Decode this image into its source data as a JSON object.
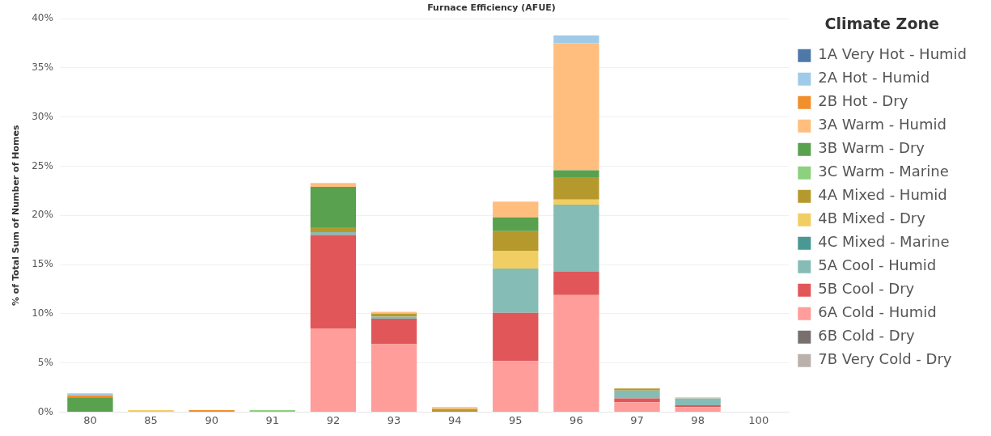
{
  "chart_data": {
    "type": "bar",
    "title": "Furnace Efficiency (AFUE)",
    "ylabel": "% of Total Sum of Number of Homes",
    "legend_title": "Climate Zone",
    "stacked": true,
    "grid": "y",
    "legend": "right",
    "categories": [
      "80",
      "85",
      "90",
      "91",
      "92",
      "93",
      "94",
      "95",
      "96",
      "97",
      "98",
      "100"
    ],
    "ylim": [
      0,
      40
    ],
    "yticks": [
      {
        "value": 0,
        "label": "0%"
      },
      {
        "value": 5,
        "label": "5%"
      },
      {
        "value": 10,
        "label": "10%"
      },
      {
        "value": 15,
        "label": "15%"
      },
      {
        "value": 20,
        "label": "20%"
      },
      {
        "value": 25,
        "label": "25%"
      },
      {
        "value": 30,
        "label": "30%"
      },
      {
        "value": 35,
        "label": "35%"
      },
      {
        "value": 40,
        "label": "40%"
      }
    ],
    "series": [
      {
        "name": "7B Very Cold - Dry",
        "color": "#bab0ac",
        "values": [
          null,
          null,
          null,
          null,
          null,
          null,
          null,
          null,
          null,
          null,
          null,
          null
        ]
      },
      {
        "name": "6B Cold - Dry",
        "color": "#79706e",
        "values": [
          null,
          null,
          null,
          null,
          null,
          null,
          null,
          null,
          null,
          null,
          null,
          null
        ]
      },
      {
        "name": "6A Cold - Humid",
        "color": "#ff9d9a",
        "values": [
          null,
          null,
          null,
          null,
          8.5,
          6.9,
          null,
          5.2,
          11.9,
          1.0,
          0.5,
          null
        ]
      },
      {
        "name": "5B Cool - Dry",
        "color": "#e15759",
        "values": [
          null,
          null,
          null,
          null,
          9.5,
          2.6,
          null,
          4.9,
          2.4,
          0.4,
          0.2,
          null
        ]
      },
      {
        "name": "5A Cool - Humid",
        "color": "#86bcb6",
        "values": [
          null,
          null,
          null,
          null,
          0.3,
          0.2,
          null,
          4.5,
          6.8,
          0.8,
          0.7,
          null
        ]
      },
      {
        "name": "4C Mixed - Marine",
        "color": "#499894",
        "values": [
          null,
          null,
          null,
          null,
          null,
          null,
          null,
          null,
          null,
          null,
          null,
          null
        ]
      },
      {
        "name": "4B Mixed - Dry",
        "color": "#f1ce63",
        "values": [
          null,
          0.2,
          null,
          null,
          null,
          null,
          null,
          1.8,
          0.5,
          null,
          null,
          null
        ]
      },
      {
        "name": "4A Mixed - Humid",
        "color": "#b6992d",
        "values": [
          null,
          null,
          null,
          null,
          0.5,
          0.3,
          0.3,
          2.0,
          2.3,
          0.2,
          null,
          null
        ]
      },
      {
        "name": "3C Warm - Marine",
        "color": "#8cd17d",
        "values": [
          null,
          null,
          null,
          0.2,
          null,
          null,
          null,
          null,
          null,
          null,
          null,
          null
        ]
      },
      {
        "name": "3B Warm - Dry",
        "color": "#59a14f",
        "values": [
          1.5,
          null,
          null,
          null,
          4.1,
          null,
          null,
          1.4,
          0.7,
          null,
          null,
          null
        ]
      },
      {
        "name": "3A Warm - Humid",
        "color": "#ffbe7d",
        "values": [
          null,
          null,
          null,
          null,
          0.4,
          0.2,
          0.2,
          1.6,
          12.9,
          null,
          0.1,
          null
        ]
      },
      {
        "name": "2B Hot - Dry",
        "color": "#f28e2b",
        "values": [
          0.2,
          null,
          0.2,
          null,
          null,
          null,
          null,
          null,
          null,
          null,
          null,
          null
        ]
      },
      {
        "name": "2A Hot - Humid",
        "color": "#a0cbe8",
        "values": [
          0.2,
          null,
          null,
          null,
          null,
          null,
          null,
          null,
          0.8,
          null,
          null,
          null
        ]
      },
      {
        "name": "1A Very Hot - Humid",
        "color": "#4e79a7",
        "values": [
          null,
          null,
          null,
          null,
          null,
          null,
          null,
          null,
          null,
          null,
          null,
          null
        ]
      }
    ]
  }
}
